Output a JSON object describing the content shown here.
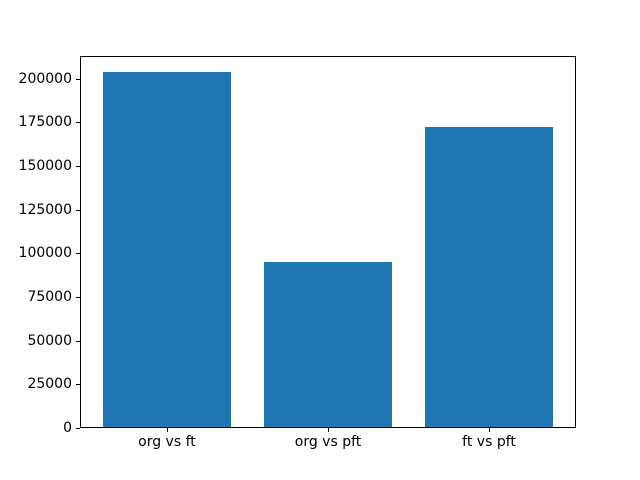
{
  "figure": {
    "background_color": "#ffffff",
    "axis_color": "#000000",
    "text_color": "#000000"
  },
  "chart_data": {
    "type": "bar",
    "title": "",
    "xlabel": "",
    "ylabel": "",
    "categories": [
      "org vs ft",
      "org vs pft",
      "ft vs pft"
    ],
    "values": [
      203000,
      94500,
      172000
    ],
    "bar_color": "#1f77b4",
    "ylim": [
      0,
      213000
    ],
    "yticks": [
      0,
      25000,
      50000,
      75000,
      100000,
      125000,
      150000,
      175000,
      200000
    ],
    "grid": false,
    "legend": "none"
  }
}
